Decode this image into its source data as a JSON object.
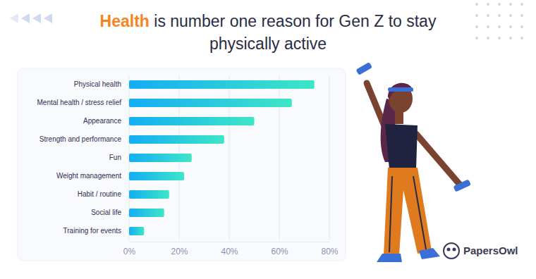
{
  "chart_data": {
    "type": "bar",
    "orientation": "horizontal",
    "title": "Health is number one reason for Gen Z to stay physically active",
    "categories": [
      "Physical health",
      "Mental health / stress relief",
      "Appearance",
      "Strength and performance",
      "Fun",
      "Weight management",
      "Habit / routine",
      "Social life",
      "Training for events"
    ],
    "values": [
      74,
      65,
      50,
      38,
      25,
      22,
      16,
      14,
      6
    ],
    "color": "#13adf4",
    "xlim": [
      0,
      80
    ],
    "xticks": [
      {
        "value": 0,
        "label": "0%"
      },
      {
        "value": 20,
        "label": "20%"
      },
      {
        "value": 40,
        "label": "40%"
      },
      {
        "value": 60,
        "label": "60%"
      },
      {
        "value": 80,
        "label": "80%"
      }
    ],
    "grid": true,
    "annotations": [
      "PapersOwl"
    ]
  }
}
